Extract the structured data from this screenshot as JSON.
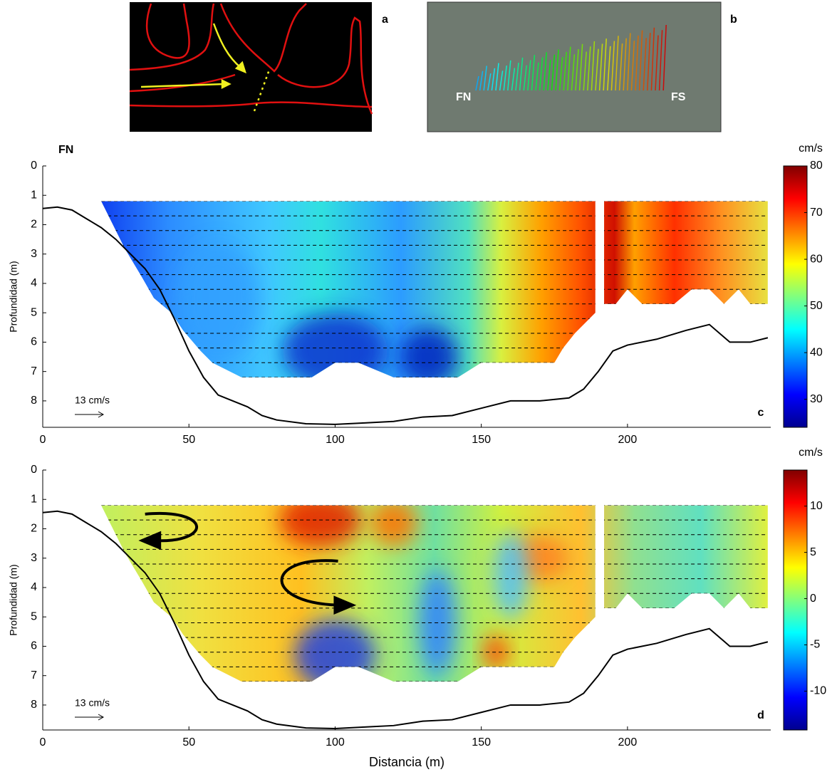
{
  "panels": {
    "a": {
      "label": "a"
    },
    "b": {
      "label": "b",
      "left_label": "FN",
      "right_label": "FS"
    }
  },
  "chart_data": [
    {
      "type": "contour",
      "label": "c",
      "corner_label": "FN",
      "ylabel": "Profundidad (m)",
      "scale_label": "13 cm/s",
      "xlim": [
        0,
        249
      ],
      "xticks": [
        0,
        50,
        100,
        150,
        200
      ],
      "ylim": [
        0,
        8.9
      ],
      "y_inverted": true,
      "yticks": [
        0,
        1,
        2,
        3,
        4,
        5,
        6,
        7,
        8
      ],
      "colorbar": {
        "title": "cm/s",
        "colormap": "jet",
        "lim": [
          24,
          80
        ],
        "ticks": [
          30,
          40,
          50,
          60,
          70,
          80
        ]
      },
      "bottom": {
        "x": [
          0,
          5,
          10,
          15,
          20,
          25,
          30,
          35,
          40,
          45,
          50,
          55,
          60,
          65,
          70,
          75,
          80,
          90,
          100,
          110,
          120,
          130,
          140,
          150,
          160,
          170,
          180,
          185,
          190,
          195,
          200,
          210,
          220,
          228,
          235,
          242,
          248
        ],
        "y": [
          1.45,
          1.4,
          1.5,
          1.8,
          2.1,
          2.5,
          3.0,
          3.5,
          4.2,
          5.2,
          6.3,
          7.2,
          7.8,
          8.0,
          8.2,
          8.5,
          8.65,
          8.78,
          8.8,
          8.75,
          8.7,
          8.55,
          8.5,
          8.25,
          8.0,
          8.0,
          7.9,
          7.6,
          7.0,
          6.3,
          6.1,
          5.9,
          5.6,
          5.4,
          6.0,
          6.0,
          5.85
        ]
      }
    },
    {
      "type": "contour",
      "label": "d",
      "ylabel": "Profundidad (m)",
      "xlabel": "Distancia (m)",
      "scale_label": "13 cm/s",
      "xlim": [
        0,
        249
      ],
      "xticks": [
        0,
        50,
        100,
        150,
        200
      ],
      "ylim": [
        0,
        8.85
      ],
      "y_inverted": true,
      "yticks": [
        0,
        1,
        2,
        3,
        4,
        5,
        6,
        7,
        8
      ],
      "colorbar": {
        "title": "cm/s",
        "colormap": "jet",
        "lim": [
          -14.2,
          13.9
        ],
        "ticks": [
          -10,
          -5,
          0,
          5,
          10
        ]
      },
      "bottom": {
        "x": [
          0,
          5,
          10,
          15,
          20,
          25,
          30,
          35,
          40,
          45,
          50,
          55,
          60,
          65,
          70,
          75,
          80,
          90,
          100,
          110,
          120,
          130,
          140,
          150,
          160,
          170,
          180,
          185,
          190,
          195,
          200,
          210,
          220,
          228,
          235,
          242,
          248
        ],
        "y": [
          1.45,
          1.4,
          1.5,
          1.8,
          2.1,
          2.5,
          3.0,
          3.5,
          4.2,
          5.2,
          6.3,
          7.2,
          7.8,
          8.0,
          8.2,
          8.5,
          8.65,
          8.78,
          8.8,
          8.75,
          8.7,
          8.55,
          8.5,
          8.25,
          8.0,
          8.0,
          7.9,
          7.6,
          7.0,
          6.3,
          6.1,
          5.9,
          5.6,
          5.4,
          6.0,
          6.0,
          5.85
        ]
      }
    }
  ]
}
